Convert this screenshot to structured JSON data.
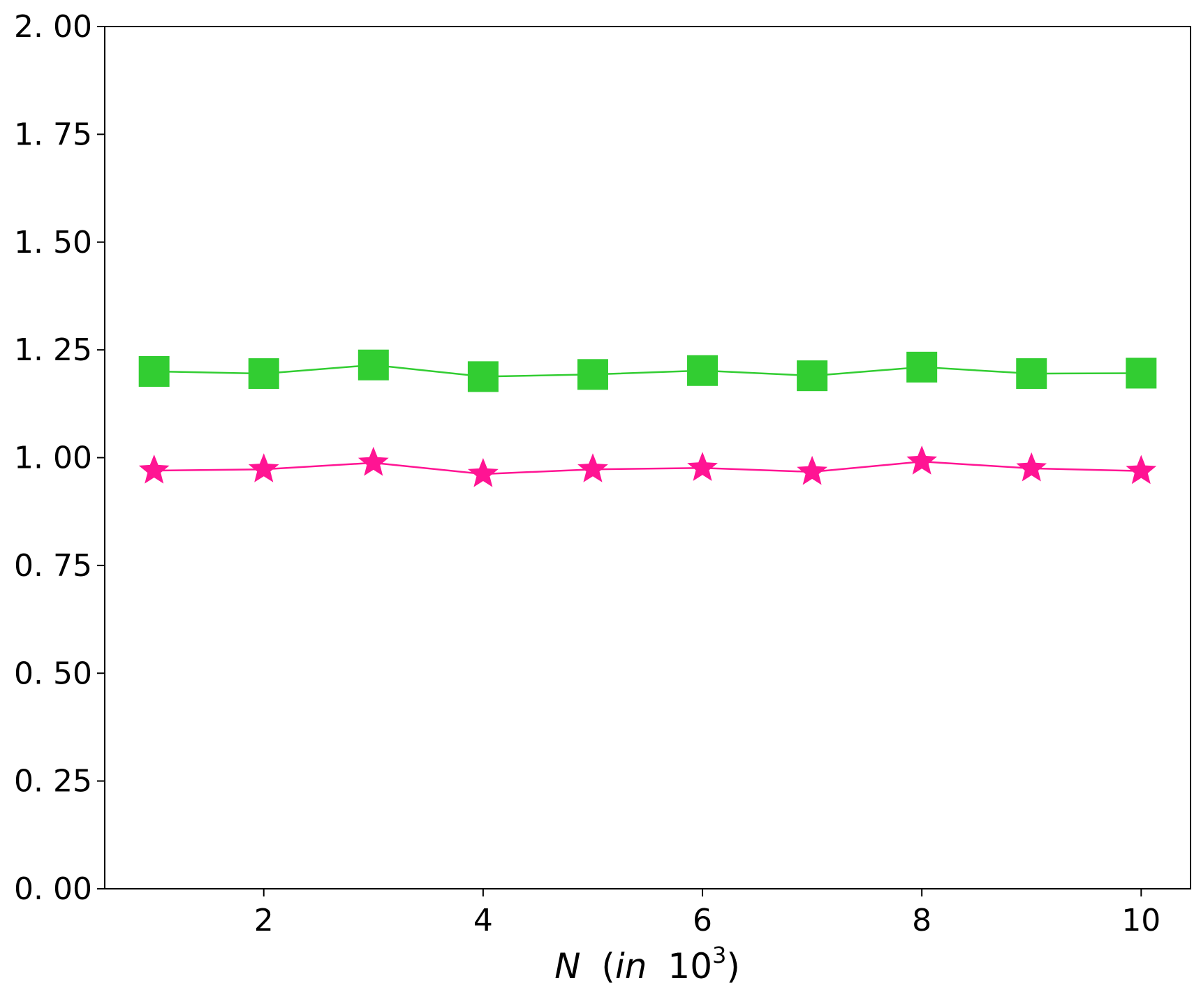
{
  "chart_data": {
    "type": "line",
    "title": "",
    "xlabel": "N (in 10^3)",
    "xlabel_parts": {
      "var": "N",
      "open": "(",
      "in": "in",
      "base": "10",
      "exp": "3",
      "close": ")"
    },
    "ylabel": "",
    "xlim": [
      0.55,
      10.45
    ],
    "ylim": [
      0,
      2
    ],
    "grid": false,
    "legend": "none",
    "x": [
      1,
      2,
      3,
      4,
      5,
      6,
      7,
      8,
      9,
      10
    ],
    "xticks": [
      2,
      4,
      6,
      8,
      10
    ],
    "xtick_labels": [
      "2",
      "4",
      "6",
      "8",
      "10"
    ],
    "yticks": [
      0,
      0.25,
      0.5,
      0.75,
      1.0,
      1.25,
      1.5,
      1.75,
      2.0
    ],
    "ytick_labels": [
      "0. 00",
      "0. 25",
      "0. 50",
      "0. 75",
      "1. 00",
      "1. 25",
      "1. 50",
      "1. 75",
      "2. 00"
    ],
    "series": [
      {
        "marker": "square",
        "color": "#32cd32",
        "values": [
          1.2,
          1.195,
          1.215,
          1.188,
          1.193,
          1.202,
          1.19,
          1.21,
          1.195,
          1.196
        ]
      },
      {
        "marker": "star",
        "color": "#ff1493",
        "values": [
          0.97,
          0.973,
          0.988,
          0.962,
          0.973,
          0.976,
          0.967,
          0.991,
          0.975,
          0.969
        ]
      }
    ]
  }
}
